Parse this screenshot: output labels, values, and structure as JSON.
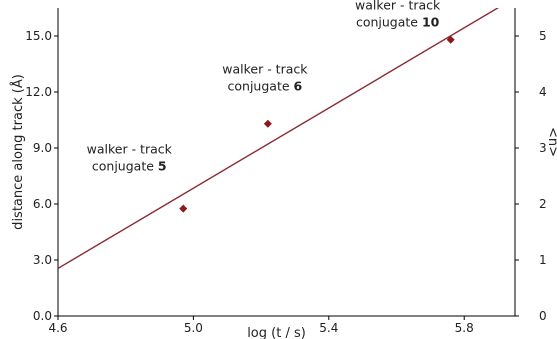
{
  "chart_data": {
    "type": "scatter",
    "xlabel": "log (t / s)",
    "ylabel": "distance along track (Å)",
    "y2label": "<n>",
    "xlim": [
      4.6,
      5.95
    ],
    "ylim": [
      0,
      16.5
    ],
    "y2lim": [
      0,
      5.5
    ],
    "xticks": [
      "4.6",
      "5.0",
      "5.4",
      "5.8"
    ],
    "yticks": [
      "0.0",
      "3.0",
      "6.0",
      "9.0",
      "12.0",
      "15.0"
    ],
    "y2ticks": [
      "0",
      "1",
      "2",
      "3",
      "4",
      "5"
    ],
    "grid": false,
    "colors": {
      "points": "#8b1a1a",
      "fit_line": "#8b2a35"
    },
    "series": [
      {
        "marker": "diamond",
        "points": [
          {
            "x": 4.97,
            "y": 5.75
          },
          {
            "x": 5.22,
            "y": 10.3
          },
          {
            "x": 5.76,
            "y": 14.8
          }
        ]
      }
    ],
    "fit_line": {
      "x": [
        4.6,
        5.95
      ],
      "y": [
        2.55,
        17.05
      ]
    },
    "annotations": [
      {
        "line1": "walker - track",
        "line2": "conjugate",
        "number": "5"
      },
      {
        "line1": "walker - track",
        "line2": "conjugate",
        "number": "6"
      },
      {
        "line1": "walker - track",
        "line2": "conjugate",
        "number": "10"
      }
    ]
  }
}
